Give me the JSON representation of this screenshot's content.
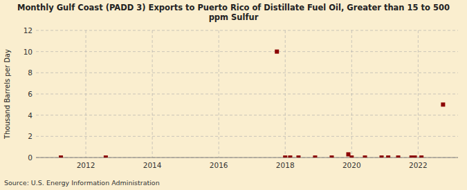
{
  "chart_data": {
    "type": "scatter",
    "title": "Monthly Gulf Coast (PADD 3) Exports to Puerto Rico of Distillate Fuel Oil, Greater than 15 to 500\nppm Sulfur",
    "ylabel": "Thousand Barrels per Day",
    "source": "Source: U.S. Energy Information Administration",
    "x": [
      2011.25,
      2012.6,
      2017.75,
      2018.0,
      2018.15,
      2018.4,
      2018.9,
      2019.4,
      2019.9,
      2020.0,
      2020.4,
      2020.9,
      2021.1,
      2021.4,
      2021.8,
      2021.9,
      2022.1,
      2022.75
    ],
    "values": [
      0.0,
      0.0,
      10.0,
      0.0,
      0.0,
      0.0,
      0.0,
      0.0,
      0.3,
      0.0,
      0.0,
      0.0,
      0.0,
      0.0,
      0.0,
      0.0,
      0.0,
      5.0
    ],
    "color": "#8b0000",
    "marker": "square",
    "xlim": [
      2010.5,
      2023.2
    ],
    "ylim": [
      0,
      12
    ],
    "xticks": [
      2012,
      2014,
      2016,
      2018,
      2020,
      2022
    ],
    "yticks": [
      0,
      2,
      4,
      6,
      8,
      10,
      12
    ],
    "grid": true
  }
}
